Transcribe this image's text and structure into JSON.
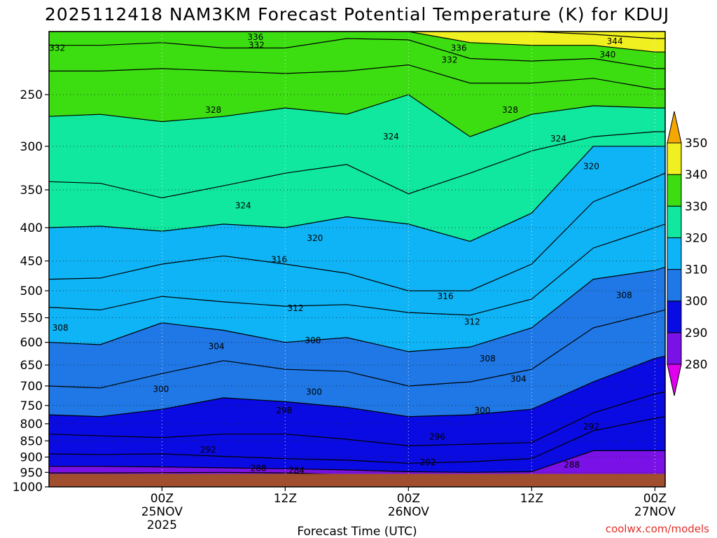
{
  "chart_data": {
    "type": "heatmap",
    "title": "2025112418 NAM3KM Forecast Potential Temperature (K) for KDUJ",
    "xlabel": "Forecast Time (UTC)",
    "ylabel": "",
    "credit": "coolwx.com/models",
    "x_domain_hours": [
      -5,
      55
    ],
    "y_axis": {
      "scale": "log-pressure",
      "range_hpa": [
        1000,
        200
      ],
      "ticks": [
        1000,
        950,
        900,
        850,
        800,
        750,
        700,
        650,
        600,
        550,
        500,
        450,
        400,
        350,
        300,
        250
      ]
    },
    "x_ticks": [
      {
        "hour": 6,
        "line1": "00Z",
        "line2": "25NOV",
        "line3": "2025"
      },
      {
        "hour": 18,
        "line1": "12Z",
        "line2": "",
        "line3": ""
      },
      {
        "hour": 30,
        "line1": "00Z",
        "line2": "26NOV",
        "line3": ""
      },
      {
        "hour": 42,
        "line1": "12Z",
        "line2": "",
        "line3": ""
      },
      {
        "hour": 54,
        "line1": "00Z",
        "line2": "27NOV",
        "line3": ""
      }
    ],
    "colorbar": {
      "levels": [
        280,
        290,
        300,
        310,
        320,
        330,
        340,
        350
      ],
      "colors": [
        "#e000ee",
        "#7a11e6",
        "#0a0ae2",
        "#1f78e6",
        "#0fb4f6",
        "#10e8a0",
        "#3cde12",
        "#f0f020",
        "#f4a700"
      ]
    },
    "field": {
      "times_h": [
        -5,
        0,
        6,
        12,
        18,
        24,
        30,
        36,
        42,
        48,
        54,
        55
      ],
      "isentrope_levels": [
        284,
        288,
        292,
        296,
        300,
        304,
        308,
        312,
        316,
        320,
        324,
        328,
        332,
        336,
        340,
        344
      ],
      "isentrope_pressure_hpa": [
        [
          952,
          952,
          951,
          950,
          952,
          958,
          975,
          985,
          990,
          995,
          1000,
          1000
        ],
        [
          930,
          930,
          932,
          935,
          938,
          942,
          948,
          950,
          948,
          880,
          880,
          880
        ],
        [
          890,
          892,
          890,
          898,
          905,
          910,
          920,
          915,
          905,
          820,
          785,
          780
        ],
        [
          830,
          835,
          840,
          830,
          830,
          845,
          865,
          860,
          855,
          770,
          720,
          715
        ],
        [
          775,
          780,
          760,
          730,
          740,
          755,
          780,
          775,
          760,
          690,
          635,
          630
        ],
        [
          700,
          705,
          670,
          640,
          660,
          665,
          700,
          690,
          660,
          570,
          540,
          535
        ],
        [
          600,
          605,
          560,
          575,
          600,
          590,
          620,
          610,
          570,
          480,
          465,
          460
        ],
        [
          530,
          535,
          510,
          520,
          528,
          525,
          540,
          545,
          515,
          430,
          400,
          395
        ],
        [
          480,
          478,
          455,
          442,
          455,
          470,
          500,
          500,
          455,
          365,
          335,
          330
        ],
        [
          400,
          398,
          405,
          395,
          400,
          385,
          395,
          420,
          380,
          300,
          300,
          300
        ],
        [
          340,
          342,
          360,
          345,
          330,
          320,
          355,
          330,
          305,
          290,
          285,
          285
        ],
        [
          270,
          268,
          275,
          270,
          262,
          268,
          250,
          290,
          268,
          260,
          262,
          262
        ],
        [
          230,
          230,
          228,
          230,
          232,
          230,
          225,
          240,
          240,
          236,
          245,
          245
        ],
        [
          210,
          210,
          208,
          212,
          212,
          205,
          206,
          220,
          222,
          220,
          228,
          228
        ],
        [
          200,
          200,
          200,
          200,
          200,
          200,
          200,
          208,
          210,
          210,
          215,
          215
        ],
        [
          200,
          200,
          200,
          200,
          200,
          200,
          200,
          200,
          200,
          202,
          205,
          205
        ]
      ],
      "surface_pressure_hpa": 955,
      "ground_color": "#a04e2e"
    },
    "contour_labels": [
      {
        "text": "332",
        "hour": -4.2,
        "hpa": 212
      },
      {
        "text": "336",
        "hour": 15.1,
        "hpa": 204
      },
      {
        "text": "332",
        "hour": 15.2,
        "hpa": 210
      },
      {
        "text": "336",
        "hour": 34.9,
        "hpa": 212
      },
      {
        "text": "332",
        "hour": 34.0,
        "hpa": 221
      },
      {
        "text": "344",
        "hour": 50.1,
        "hpa": 207
      },
      {
        "text": "340",
        "hour": 49.4,
        "hpa": 217
      },
      {
        "text": "328",
        "hour": 11.0,
        "hpa": 264
      },
      {
        "text": "328",
        "hour": 39.9,
        "hpa": 264
      },
      {
        "text": "324",
        "hour": 28.3,
        "hpa": 290
      },
      {
        "text": "324",
        "hour": 44.6,
        "hpa": 292
      },
      {
        "text": "320",
        "hour": 47.8,
        "hpa": 322
      },
      {
        "text": "324",
        "hour": 13.9,
        "hpa": 370
      },
      {
        "text": "320",
        "hour": 20.9,
        "hpa": 415
      },
      {
        "text": "316",
        "hour": 17.4,
        "hpa": 448
      },
      {
        "text": "312",
        "hour": 19.0,
        "hpa": 532
      },
      {
        "text": "316",
        "hour": 33.6,
        "hpa": 510
      },
      {
        "text": "312",
        "hour": 36.2,
        "hpa": 558
      },
      {
        "text": "308",
        "hour": 51.0,
        "hpa": 508
      },
      {
        "text": "308",
        "hour": -3.9,
        "hpa": 570
      },
      {
        "text": "304",
        "hour": 11.3,
        "hpa": 609
      },
      {
        "text": "308",
        "hour": 20.7,
        "hpa": 596
      },
      {
        "text": "308",
        "hour": 37.7,
        "hpa": 636
      },
      {
        "text": "304",
        "hour": 40.7,
        "hpa": 683
      },
      {
        "text": "300",
        "hour": 5.9,
        "hpa": 708
      },
      {
        "text": "300",
        "hour": 20.8,
        "hpa": 715
      },
      {
        "text": "300",
        "hour": 37.2,
        "hpa": 763
      },
      {
        "text": "298",
        "hour": 17.9,
        "hpa": 763
      },
      {
        "text": "292",
        "hour": 47.8,
        "hpa": 808
      },
      {
        "text": "296",
        "hour": 32.8,
        "hpa": 838
      },
      {
        "text": "292",
        "hour": 10.5,
        "hpa": 877
      },
      {
        "text": "292",
        "hour": 31.9,
        "hpa": 917
      },
      {
        "text": "288",
        "hour": 45.9,
        "hpa": 925
      },
      {
        "text": "288",
        "hour": 15.4,
        "hpa": 936
      },
      {
        "text": "284",
        "hour": 19.1,
        "hpa": 943
      }
    ]
  }
}
